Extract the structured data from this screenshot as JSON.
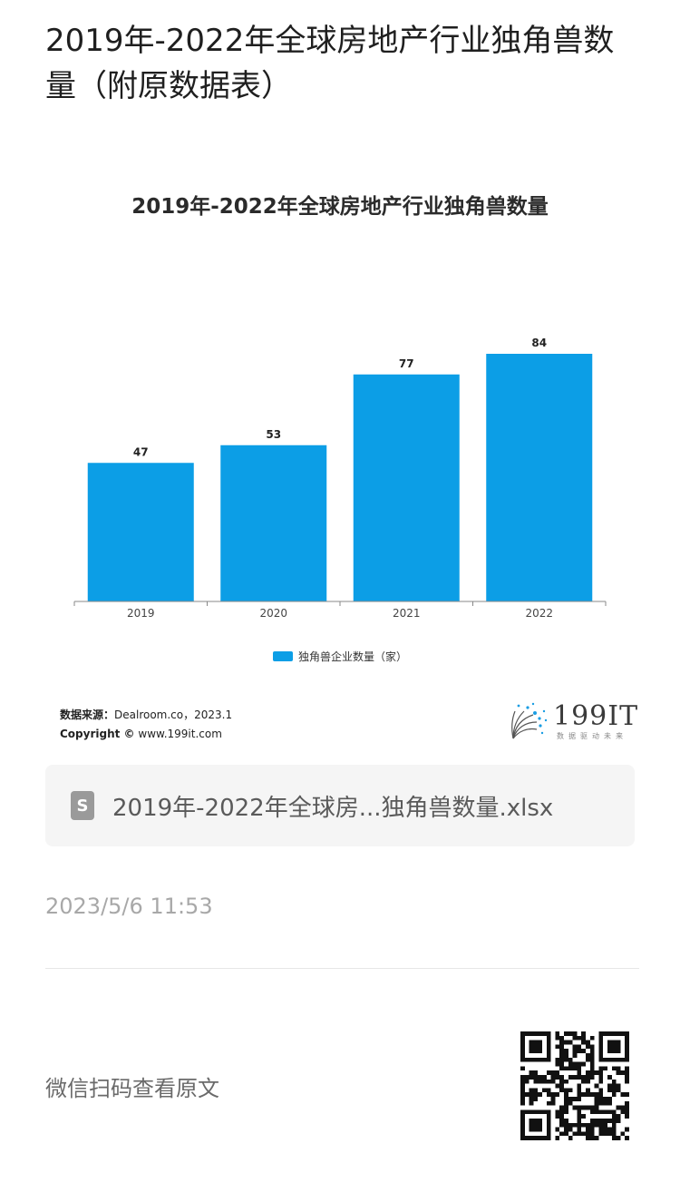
{
  "page": {
    "title": "2019年-2022年全球房地产行业独角兽数量（附原数据表）"
  },
  "chart_data": {
    "type": "bar",
    "title": "2019年-2022年全球房地产行业独角兽数量",
    "categories": [
      "2019",
      "2020",
      "2021",
      "2022"
    ],
    "series": [
      {
        "name": "独角兽企业数量（家）",
        "values": [
          47,
          53,
          77,
          84
        ]
      }
    ],
    "ylim": [
      0,
      100
    ],
    "grid": false,
    "legend_position": "bottom",
    "bar_color": "#0c9ee6"
  },
  "source": {
    "label": "数据来源：",
    "text": "Dealroom.co，2023.1",
    "copyright_label": "Copyright ©",
    "copyright_text": "www.199it.com"
  },
  "logo": {
    "text": "199IT",
    "subtitle": "数据驱动未来",
    "icon": "dandelion-logo-icon"
  },
  "file": {
    "icon": "spreadsheet-file-icon",
    "icon_letter": "S",
    "name": "2019年-2022年全球房...独角兽数量.xlsx"
  },
  "timestamp": "2023/5/6 11:53",
  "footer": {
    "wechat_text": "微信扫码查看原文",
    "qr_icon": "qr-code-icon"
  }
}
